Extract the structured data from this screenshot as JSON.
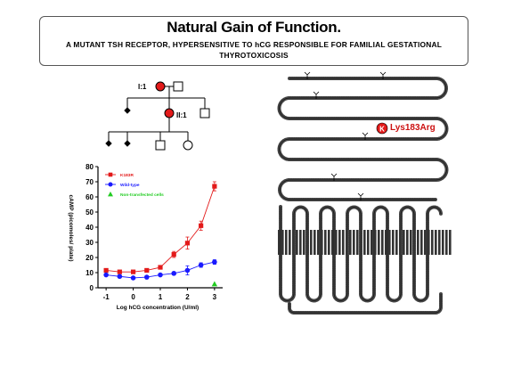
{
  "slide": {
    "title": "Natural Gain of Function.",
    "subtitle": "A MUTANT TSH RECEPTOR, HYPERSENSITIVE TO hCG RESPONSIBLE FOR FAMILIAL GESTATIONAL THYROTOXICOSIS"
  },
  "pedigree": {
    "label_i1": "I:1",
    "label_ii1": "II:1"
  },
  "receptor": {
    "mutation_label": "Lys183Arg",
    "residue_letter": "K"
  },
  "colors": {
    "red": "#e31a1a",
    "blue": "#1a1aff",
    "green": "#22cc22",
    "membrane": "#333333"
  },
  "chart_data": {
    "type": "line",
    "xlabel": "Log hCG concentration (U/ml)",
    "ylabel": "cAMP (picomoles/ plate)",
    "xlim": [
      -1.3,
      3.3
    ],
    "ylim": [
      0,
      80
    ],
    "xticks": [
      -1,
      0,
      1,
      2,
      3
    ],
    "yticks": [
      0,
      10,
      20,
      30,
      40,
      50,
      60,
      70,
      80
    ],
    "grid": false,
    "legend_position": "top-left",
    "series": [
      {
        "name": "K183R",
        "color": "#e31a1a",
        "marker": "square",
        "x": [
          -1,
          -0.5,
          0,
          0.5,
          1,
          1.5,
          2,
          2.5,
          3
        ],
        "y": [
          11.5,
          10.5,
          10.5,
          11.5,
          13.5,
          22,
          29.5,
          41,
          67
        ],
        "err": [
          1,
          0.8,
          0.8,
          0.8,
          1,
          2,
          4,
          3,
          3
        ]
      },
      {
        "name": "Wild-type",
        "color": "#1a1aff",
        "marker": "circle",
        "x": [
          -1,
          -0.5,
          0,
          0.5,
          1,
          1.5,
          2,
          2.5,
          3
        ],
        "y": [
          8.5,
          7.5,
          6.5,
          7,
          8.5,
          9.5,
          11.5,
          15,
          17
        ],
        "err": [
          0.8,
          0.6,
          0.6,
          0.6,
          0.8,
          1,
          3,
          1.5,
          1.5
        ]
      },
      {
        "name": "Non-transfected cells",
        "color": "#22cc22",
        "marker": "triangle",
        "x": [
          3
        ],
        "y": [
          2.5
        ],
        "err": [
          0
        ]
      }
    ]
  }
}
